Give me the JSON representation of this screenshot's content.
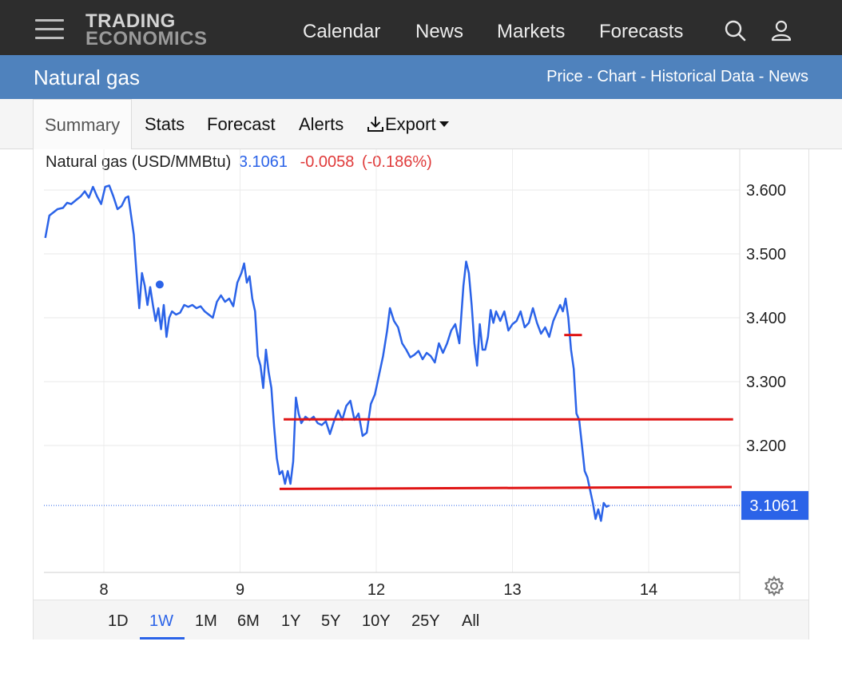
{
  "header": {
    "logo_line1": "TRADING",
    "logo_line2": "ECONOMICS",
    "nav": [
      "Calendar",
      "News",
      "Markets",
      "Forecasts"
    ],
    "icons": [
      "menu-icon",
      "search-icon",
      "user-icon"
    ]
  },
  "subheader": {
    "title": "Natural gas",
    "links": [
      "Price",
      "Chart",
      "Historical Data",
      "News"
    ],
    "separator": " - "
  },
  "tabs": {
    "summary": "Summary",
    "stats": "Stats",
    "forecast": "Forecast",
    "alerts": "Alerts",
    "export": "Export"
  },
  "quote": {
    "name": "Natural gas (USD/MMBtu)",
    "price": "3.1061",
    "change": "-0.0058",
    "change_pct": "(-0.186%)"
  },
  "ranges": {
    "items": [
      "1D",
      "1W",
      "1M",
      "6M",
      "1Y",
      "5Y",
      "10Y",
      "25Y",
      "All"
    ],
    "selected": "1W"
  },
  "colors": {
    "series": "#2b63e8",
    "trendlines": "#e01414",
    "last_price_tag": "#2b63e8",
    "negative": "#e03b3b",
    "brand_bar": "#4f82bd"
  },
  "chart_data": {
    "type": "line",
    "series_name": "Natural gas (USD/MMBtu)",
    "x_tick_labels": [
      "8",
      "9",
      "12",
      "13",
      "14"
    ],
    "x_tick_positions": [
      1.0,
      2.0,
      3.0,
      4.0,
      5.0
    ],
    "x_range": [
      0.57,
      5.62
    ],
    "y_ticks": [
      3.6,
      3.5,
      3.4,
      3.3,
      3.2
    ],
    "y_tick_labels": [
      "3.600",
      "3.500",
      "3.400",
      "3.300",
      "3.200"
    ],
    "y_range": [
      3.0,
      3.65
    ],
    "last_value": 3.1061,
    "last_value_label": "3.1061",
    "grid": true,
    "points": [
      [
        0.57,
        3.525
      ],
      [
        0.6,
        3.56
      ],
      [
        0.63,
        3.565
      ],
      [
        0.66,
        3.57
      ],
      [
        0.7,
        3.572
      ],
      [
        0.73,
        3.58
      ],
      [
        0.76,
        3.578
      ],
      [
        0.8,
        3.585
      ],
      [
        0.83,
        3.59
      ],
      [
        0.86,
        3.598
      ],
      [
        0.89,
        3.588
      ],
      [
        0.92,
        3.605
      ],
      [
        0.95,
        3.59
      ],
      [
        0.98,
        3.578
      ],
      [
        1.01,
        3.605
      ],
      [
        1.04,
        3.607
      ],
      [
        1.07,
        3.59
      ],
      [
        1.1,
        3.57
      ],
      [
        1.13,
        3.575
      ],
      [
        1.16,
        3.588
      ],
      [
        1.18,
        3.59
      ],
      [
        1.2,
        3.56
      ],
      [
        1.22,
        3.53
      ],
      [
        1.24,
        3.47
      ],
      [
        1.26,
        3.415
      ],
      [
        1.28,
        3.47
      ],
      [
        1.3,
        3.45
      ],
      [
        1.32,
        3.42
      ],
      [
        1.34,
        3.448
      ],
      [
        1.36,
        3.42
      ],
      [
        1.38,
        3.395
      ],
      [
        1.4,
        3.415
      ],
      [
        1.42,
        3.382
      ],
      [
        1.44,
        3.42
      ],
      [
        1.46,
        3.37
      ],
      [
        1.48,
        3.4
      ],
      [
        1.5,
        3.41
      ],
      [
        1.53,
        3.405
      ],
      [
        1.56,
        3.408
      ],
      [
        1.59,
        3.42
      ],
      [
        1.62,
        3.417
      ],
      [
        1.65,
        3.42
      ],
      [
        1.68,
        3.415
      ],
      [
        1.71,
        3.418
      ],
      [
        1.74,
        3.41
      ],
      [
        1.77,
        3.405
      ],
      [
        1.8,
        3.4
      ],
      [
        1.83,
        3.425
      ],
      [
        1.86,
        3.435
      ],
      [
        1.89,
        3.425
      ],
      [
        1.92,
        3.43
      ],
      [
        1.95,
        3.418
      ],
      [
        1.98,
        3.455
      ],
      [
        2.01,
        3.47
      ],
      [
        2.03,
        3.485
      ],
      [
        2.05,
        3.455
      ],
      [
        2.07,
        3.465
      ],
      [
        2.09,
        3.43
      ],
      [
        2.11,
        3.41
      ],
      [
        2.13,
        3.34
      ],
      [
        2.15,
        3.325
      ],
      [
        2.17,
        3.29
      ],
      [
        2.19,
        3.35
      ],
      [
        2.21,
        3.315
      ],
      [
        2.23,
        3.29
      ],
      [
        2.25,
        3.23
      ],
      [
        2.27,
        3.18
      ],
      [
        2.29,
        3.155
      ],
      [
        2.31,
        3.16
      ],
      [
        2.33,
        3.14
      ],
      [
        2.35,
        3.16
      ],
      [
        2.37,
        3.14
      ],
      [
        2.39,
        3.175
      ],
      [
        2.41,
        3.275
      ],
      [
        2.43,
        3.25
      ],
      [
        2.45,
        3.235
      ],
      [
        2.48,
        3.245
      ],
      [
        2.51,
        3.24
      ],
      [
        2.54,
        3.245
      ],
      [
        2.57,
        3.235
      ],
      [
        2.6,
        3.232
      ],
      [
        2.63,
        3.238
      ],
      [
        2.66,
        3.218
      ],
      [
        2.69,
        3.238
      ],
      [
        2.72,
        3.255
      ],
      [
        2.75,
        3.24
      ],
      [
        2.78,
        3.262
      ],
      [
        2.81,
        3.27
      ],
      [
        2.84,
        3.24
      ],
      [
        2.87,
        3.25
      ],
      [
        2.9,
        3.215
      ],
      [
        2.93,
        3.22
      ],
      [
        2.96,
        3.265
      ],
      [
        2.99,
        3.28
      ],
      [
        3.02,
        3.31
      ],
      [
        3.05,
        3.34
      ],
      [
        3.08,
        3.38
      ],
      [
        3.1,
        3.415
      ],
      [
        3.13,
        3.395
      ],
      [
        3.16,
        3.385
      ],
      [
        3.19,
        3.36
      ],
      [
        3.22,
        3.35
      ],
      [
        3.25,
        3.338
      ],
      [
        3.28,
        3.342
      ],
      [
        3.31,
        3.348
      ],
      [
        3.34,
        3.335
      ],
      [
        3.37,
        3.345
      ],
      [
        3.4,
        3.34
      ],
      [
        3.43,
        3.33
      ],
      [
        3.46,
        3.36
      ],
      [
        3.49,
        3.345
      ],
      [
        3.52,
        3.36
      ],
      [
        3.55,
        3.38
      ],
      [
        3.58,
        3.39
      ],
      [
        3.61,
        3.36
      ],
      [
        3.64,
        3.45
      ],
      [
        3.66,
        3.488
      ],
      [
        3.68,
        3.47
      ],
      [
        3.7,
        3.42
      ],
      [
        3.72,
        3.36
      ],
      [
        3.74,
        3.325
      ],
      [
        3.76,
        3.39
      ],
      [
        3.78,
        3.35
      ],
      [
        3.8,
        3.35
      ],
      [
        3.82,
        3.37
      ],
      [
        3.84,
        3.412
      ],
      [
        3.86,
        3.392
      ],
      [
        3.88,
        3.41
      ],
      [
        3.91,
        3.395
      ],
      [
        3.94,
        3.41
      ],
      [
        3.97,
        3.38
      ],
      [
        4.0,
        3.39
      ],
      [
        4.03,
        3.395
      ],
      [
        4.06,
        3.41
      ],
      [
        4.09,
        3.385
      ],
      [
        4.12,
        3.392
      ],
      [
        4.15,
        3.415
      ],
      [
        4.18,
        3.392
      ],
      [
        4.21,
        3.375
      ],
      [
        4.24,
        3.385
      ],
      [
        4.27,
        3.37
      ],
      [
        4.3,
        3.395
      ],
      [
        4.33,
        3.41
      ],
      [
        4.35,
        3.42
      ],
      [
        4.37,
        3.41
      ],
      [
        4.39,
        3.43
      ],
      [
        4.41,
        3.4
      ],
      [
        4.43,
        3.35
      ],
      [
        4.45,
        3.32
      ],
      [
        4.47,
        3.25
      ],
      [
        4.49,
        3.24
      ],
      [
        4.51,
        3.2
      ],
      [
        4.53,
        3.16
      ],
      [
        4.55,
        3.15
      ],
      [
        4.57,
        3.13
      ],
      [
        4.59,
        3.11
      ],
      [
        4.61,
        3.085
      ],
      [
        4.63,
        3.1
      ],
      [
        4.65,
        3.082
      ],
      [
        4.67,
        3.11
      ],
      [
        4.69,
        3.104
      ],
      [
        4.71,
        3.1061
      ]
    ],
    "annotations": [
      {
        "type": "trendline",
        "from": [
          2.32,
          3.241
        ],
        "to": [
          5.62,
          3.241
        ]
      },
      {
        "type": "trendline",
        "from": [
          2.29,
          3.132
        ],
        "to": [
          5.61,
          3.135
        ]
      },
      {
        "type": "marker-line",
        "from": [
          4.38,
          3.373
        ],
        "to": [
          4.51,
          3.373
        ]
      },
      {
        "type": "dot",
        "at": [
          1.41,
          3.452
        ]
      }
    ]
  }
}
